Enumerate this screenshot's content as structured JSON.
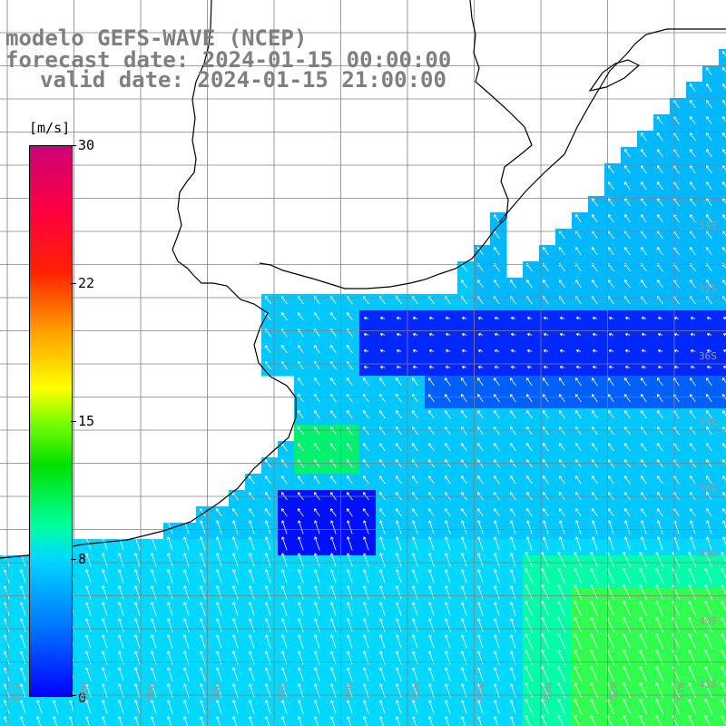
{
  "title": {
    "line1": "modelo GEFS-WAVE (NCEP)",
    "line2": "forecast date: 2024-01-15 00:00:00",
    "line3": "valid date: 2024-01-15 21:00:00"
  },
  "colorbar": {
    "unit": "[m/s]",
    "ticks": [
      "30",
      "22",
      "15",
      "8",
      "0"
    ],
    "colors": [
      "#0000ff",
      "#0070ff",
      "#00d8ff",
      "#00ffa0",
      "#00e000",
      "#7fff00",
      "#ffff00",
      "#ff9900",
      "#ff2200",
      "#cc0077"
    ]
  },
  "map": {
    "longitude_labels": [
      "61W",
      "60W",
      "59W",
      "58W",
      "57W",
      "56W",
      "55W",
      "54W",
      "53W",
      "52W",
      "51W"
    ],
    "latitude_labels": [
      "34S",
      "35S",
      "36S",
      "37S",
      "38S",
      "39S",
      "40S",
      "41S"
    ],
    "colors": {
      "land": "#ffffff",
      "coast": "#000000",
      "grid": "#808080",
      "arrows": "#ffffff",
      "title": "#7f7f7f"
    }
  }
}
